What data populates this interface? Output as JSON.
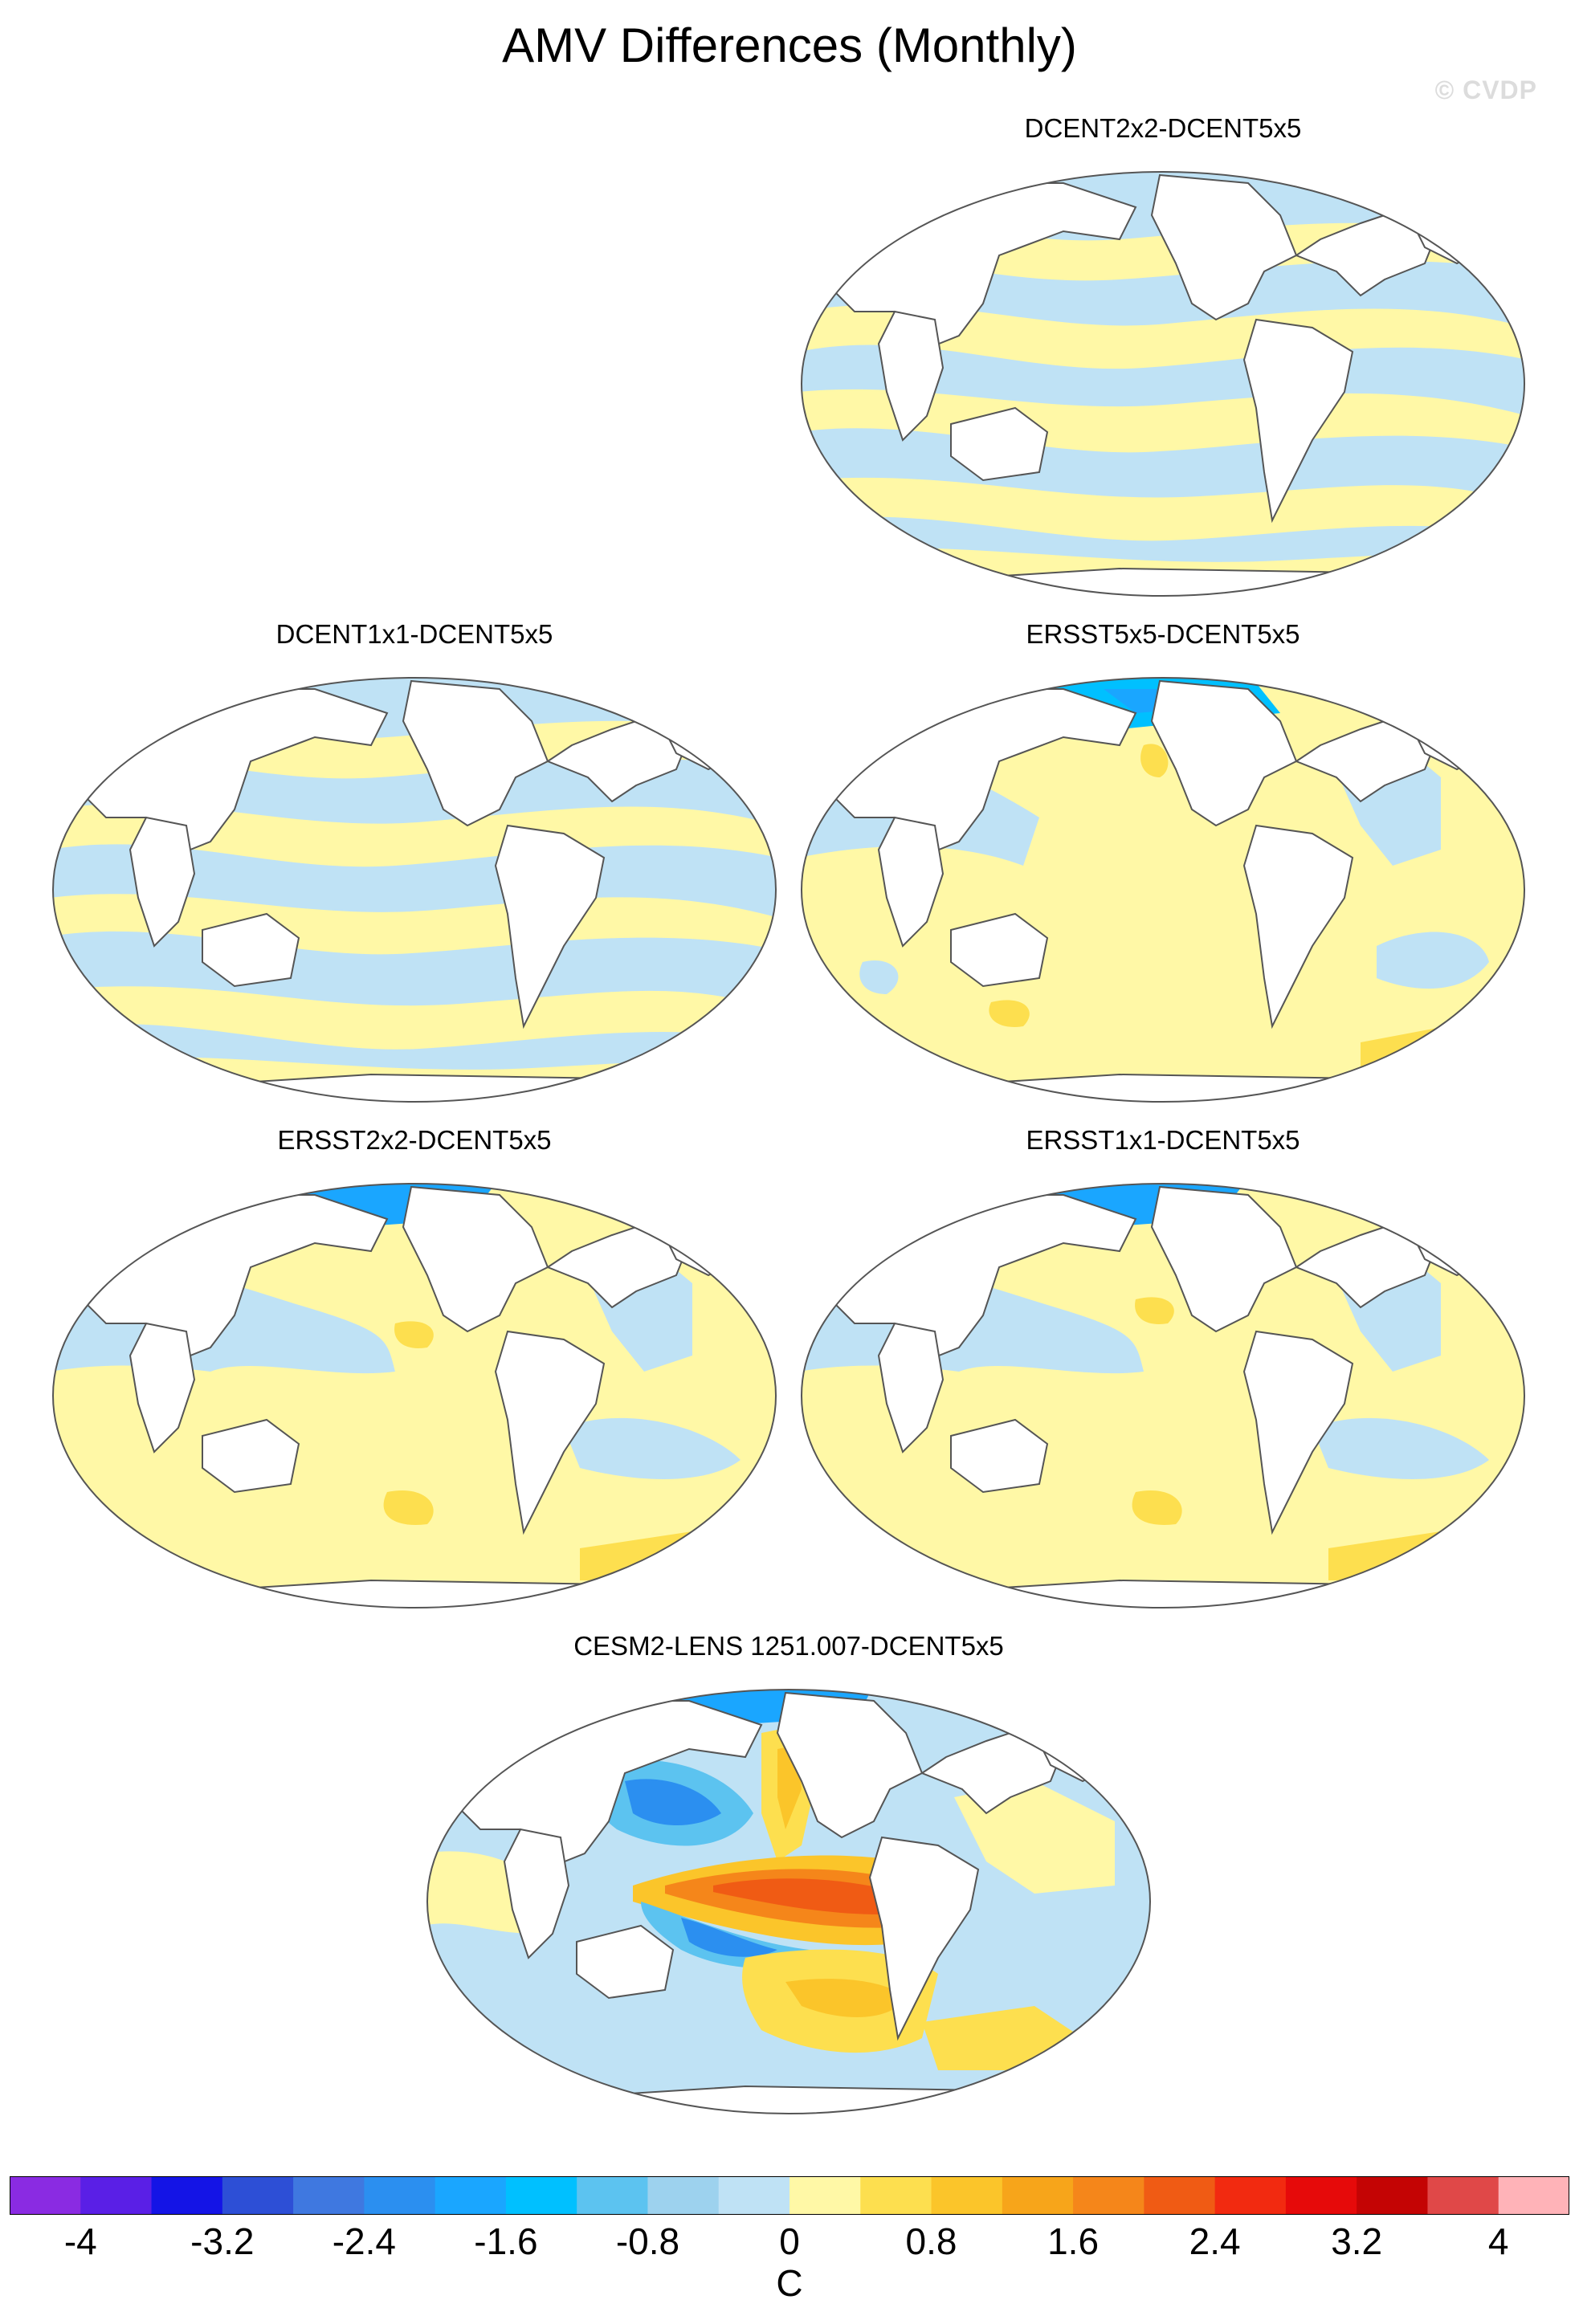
{
  "title": "AMV Differences (Monthly)",
  "watermark": "© CVDP",
  "panels": [
    {
      "id": "p1",
      "title": "DCENT2x2-DCENT5x5",
      "pattern": "banded"
    },
    {
      "id": "p2",
      "title": "DCENT1x1-DCENT5x5",
      "pattern": "banded"
    },
    {
      "id": "p3",
      "title": "ERSST5x5-DCENT5x5",
      "pattern": "ersst"
    },
    {
      "id": "p4",
      "title": "ERSST2x2-DCENT5x5",
      "pattern": "ersst"
    },
    {
      "id": "p5",
      "title": "ERSST1x1-DCENT5x5",
      "pattern": "ersst"
    },
    {
      "id": "p6",
      "title": "CESM2-LENS 1251.007-DCENT5x5",
      "pattern": "cesm"
    }
  ],
  "colorbar": {
    "colors": [
      "#8a2be2",
      "#5a1fe6",
      "#1414e6",
      "#2d4fd6",
      "#3f78e0",
      "#2b8ff0",
      "#1aa6ff",
      "#00c0ff",
      "#5cc3f0",
      "#9dd2ee",
      "#bfe2f5",
      "#fff8a6",
      "#fddf4f",
      "#fbc52a",
      "#f7a51a",
      "#f5861a",
      "#f05b14",
      "#f22a10",
      "#e60a0a",
      "#c40404",
      "#e04848",
      "#ffb3b8"
    ],
    "tick_labels": [
      "-4",
      "-3.2",
      "-2.4",
      "-1.6",
      "-0.8",
      "0",
      "0.8",
      "1.6",
      "2.4",
      "3.2",
      "4"
    ],
    "unit": "C"
  },
  "colors": {
    "land": "#ffffff",
    "coast": "#555555",
    "warm_low": "#fff8a6",
    "cool_low": "#bfe2f5"
  }
}
